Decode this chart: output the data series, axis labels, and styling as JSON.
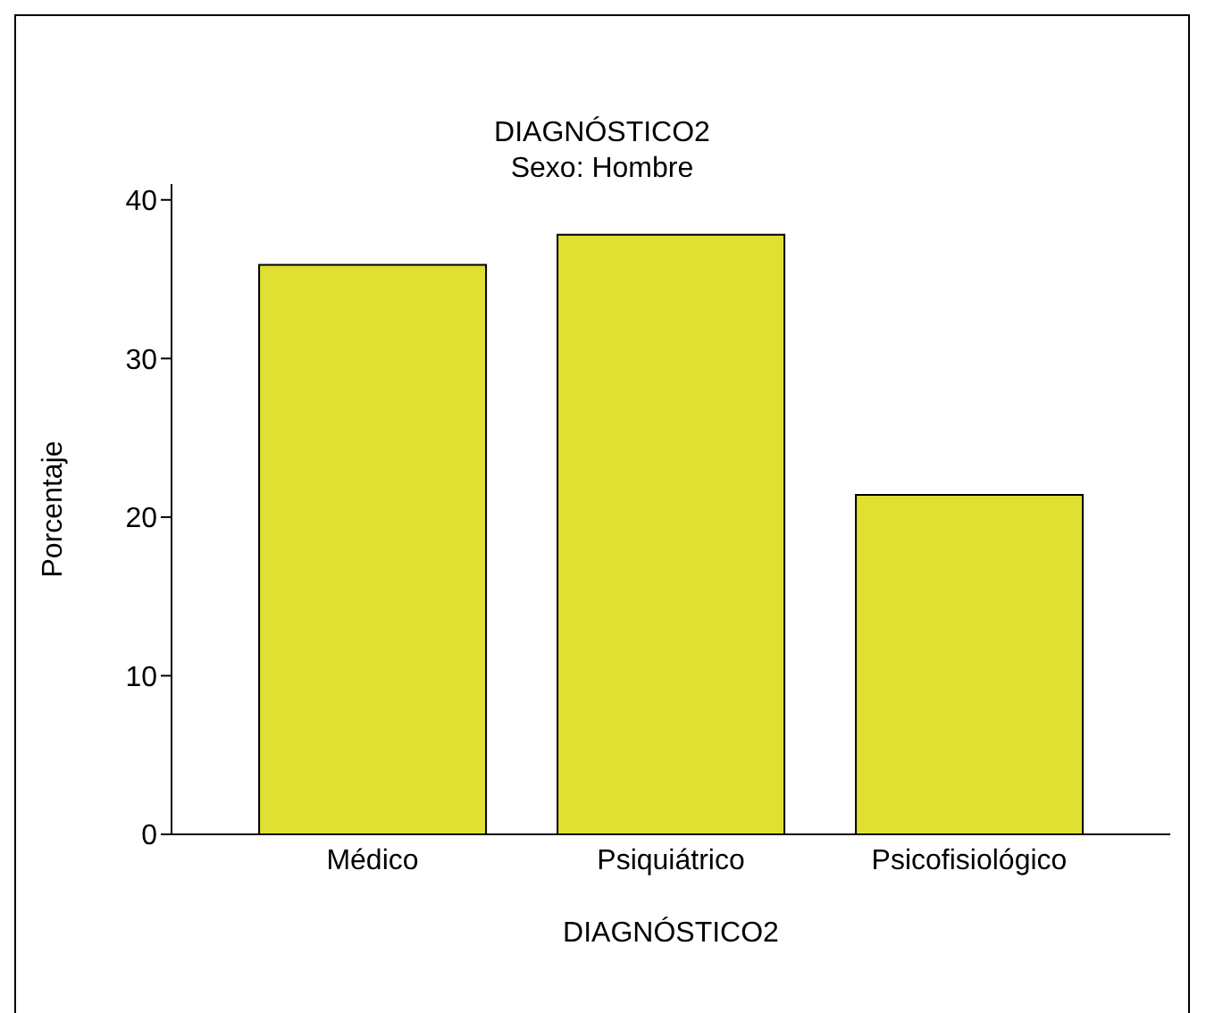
{
  "chart_data": {
    "type": "bar",
    "title": "DIAGNÓSTICO2",
    "subtitle": "Sexo: Hombre",
    "xlabel": "DIAGNÓSTICO2",
    "ylabel": "Porcentaje",
    "categories": [
      "Médico",
      "Psiquiátrico",
      "Psicofisiológico"
    ],
    "values": [
      35.9,
      37.8,
      21.4
    ],
    "color": "#e0e033",
    "ylim": [
      0,
      41
    ],
    "yticks": [
      0,
      10,
      20,
      30,
      40
    ],
    "grid": false,
    "legend": false
  }
}
